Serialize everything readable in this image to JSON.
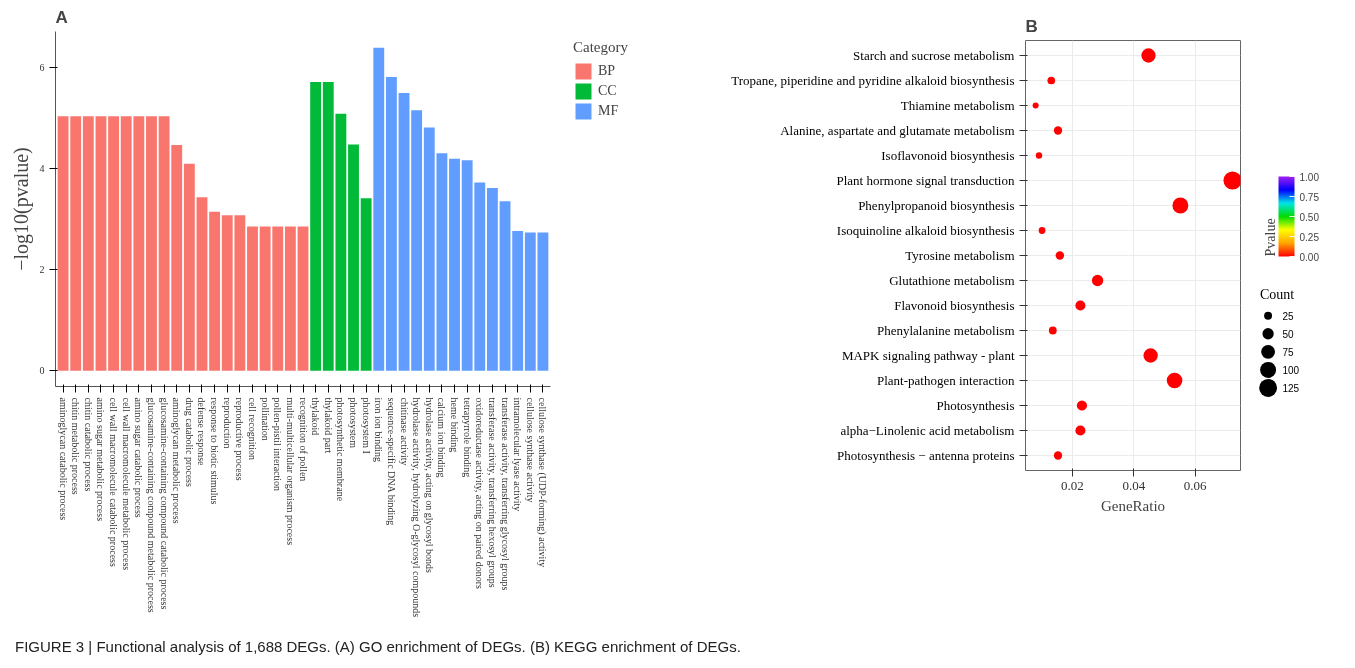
{
  "chart_data": [
    {
      "type": "bar",
      "title": "A",
      "ylabel": "−log10(pvalue)",
      "legend_title": "Category",
      "legend": "right",
      "grid": false,
      "categories": [
        "aminoglycan catabolic process",
        "chitin metabolic process",
        "chitin catabolic process",
        "amino sugar metabolic process",
        "cell wall macromolecule catabolic process",
        "cell wall macromolecule metabolic process",
        "amino sugar catabolic process",
        "glucosamine-containing compound metabolic process",
        "glucosamine-containing compound catabolic process",
        "aminoglycan metabolic process",
        "drug catabolic process",
        "defense response",
        "response to biotic stimulus",
        "reproduction",
        "reproductive process",
        "cell recognition",
        "pollination",
        "pollen-pistil interaction",
        "multi-multicellular organism process",
        "recognition of pollen",
        "thylakoid",
        "thylakoid part",
        "photosynthetic membrane",
        "photosystem",
        "photosystem I",
        "iron ion binding",
        "sequence-specific DNA binding",
        "chitinase activity",
        "hydrolase activity, hydrolyzing O-glycosyl compounds",
        "hydrolase activity, acting on glycosyl bonds",
        "calcium ion binding",
        "heme binding",
        "tetrapyrrole binding",
        "oxidoreductase activity, acting on paired donors",
        "transferase activity, transferring hexosyl groups",
        "transferase activity, transferring glycosyl groups",
        "intramolecular lyase activity",
        "cellulose synthase activity",
        "cellulose synthase (UDP-forming) activity"
      ],
      "series": [
        {
          "name": "BP",
          "color": "#f8766d",
          "values": [
            5.04,
            5.04,
            5.04,
            5.04,
            5.04,
            5.04,
            5.04,
            5.04,
            5.04,
            4.47,
            4.1,
            3.44,
            3.15,
            3.08,
            3.08,
            2.86,
            2.86,
            2.86,
            2.86,
            2.86,
            null,
            null,
            null,
            null,
            null,
            null,
            null,
            null,
            null,
            null,
            null,
            null,
            null,
            null,
            null,
            null,
            null,
            null,
            null
          ]
        },
        {
          "name": "CC",
          "color": "#00ba38",
          "values": [
            null,
            null,
            null,
            null,
            null,
            null,
            null,
            null,
            null,
            null,
            null,
            null,
            null,
            null,
            null,
            null,
            null,
            null,
            null,
            null,
            5.72,
            5.72,
            5.09,
            4.48,
            3.42,
            null,
            null,
            null,
            null,
            null,
            null,
            null,
            null,
            null,
            null,
            null,
            null,
            null,
            null
          ]
        },
        {
          "name": "MF",
          "color": "#619cff",
          "values": [
            null,
            null,
            null,
            null,
            null,
            null,
            null,
            null,
            null,
            null,
            null,
            null,
            null,
            null,
            null,
            null,
            null,
            null,
            null,
            null,
            null,
            null,
            null,
            null,
            null,
            6.4,
            5.82,
            5.5,
            5.16,
            4.82,
            4.31,
            4.2,
            4.17,
            3.73,
            3.62,
            3.36,
            2.77,
            2.74,
            2.74
          ]
        }
      ],
      "ylim": [
        -0.31,
        6.72
      ],
      "yticks": [
        0,
        2,
        4,
        6
      ],
      "annotations": [
        "FIGURE 3 | Functional analysis of 1,688 DEGs. (A) GO enrichment of DEGs. (B) KEGG enrichment of DEGs."
      ]
    },
    {
      "type": "bubble",
      "title": "B",
      "xlabel": "GeneRatio",
      "clabel": "Pvalue",
      "legend_title": "Count",
      "grid": true,
      "marker": "circle",
      "orientation": "horizontal",
      "categories": [
        "Starch and sucrose metabolism",
        "Tropane, piperidine and pyridine alkaloid biosynthesis",
        "Thiamine metabolism",
        "Alanine, aspartate and glutamate metabolism",
        "Isoflavonoid biosynthesis",
        "Plant hormone signal transduction",
        "Phenylpropanoid biosynthesis",
        "Isoquinoline alkaloid biosynthesis",
        "Tyrosine metabolism",
        "Glutathione metabolism",
        "Flavonoid biosynthesis",
        "Phenylalanine metabolism",
        "MAPK signaling pathway - plant",
        "Plant-pathogen interaction",
        "Photosynthesis",
        "alpha−Linolenic acid metabolism",
        "Photosynthesis − antenna proteins"
      ],
      "values": [
        0.0448,
        0.0131,
        0.008,
        0.0153,
        0.0091,
        0.0722,
        0.0552,
        0.0101,
        0.0159,
        0.0282,
        0.0226,
        0.0136,
        0.0455,
        0.0533,
        0.0231,
        0.0226,
        0.0153
      ],
      "sizes": [
        80,
        23,
        14,
        27,
        16,
        129,
        99,
        18,
        28,
        50,
        40,
        24,
        81,
        95,
        41,
        40,
        27
      ],
      "size_legend": [
        25,
        50,
        75,
        100,
        125
      ],
      "cvalues": [
        0,
        0,
        0,
        0,
        0,
        0,
        0,
        0,
        0,
        0,
        0,
        0,
        0,
        0,
        0,
        0,
        0
      ],
      "clim": [
        0,
        1
      ],
      "cticks": [
        {
          "value": 0,
          "label": "0.00"
        },
        {
          "value": 0.25,
          "label": "0.25"
        },
        {
          "value": 0.5,
          "label": "0.50"
        },
        {
          "value": 0.75,
          "label": "0.75"
        },
        {
          "value": 1,
          "label": "1.00"
        }
      ],
      "xlim": [
        0.0047,
        0.0748
      ],
      "xticks": [
        {
          "value": 0.02,
          "label": "0.02"
        },
        {
          "value": 0.04,
          "label": "0.04"
        },
        {
          "value": 0.06,
          "label": "0.06"
        }
      ]
    }
  ]
}
